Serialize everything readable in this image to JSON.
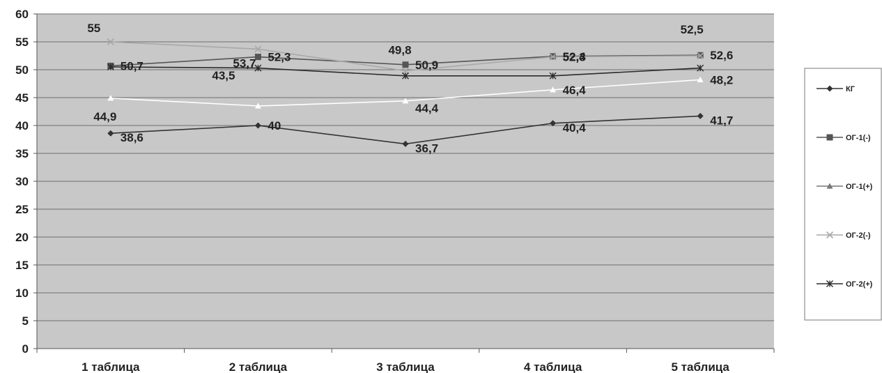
{
  "chart_data": {
    "type": "line",
    "categories": [
      "1 таблица",
      "2 таблица",
      "3 таблица",
      "4 таблица",
      "5 таблица"
    ],
    "ylim": [
      0,
      60
    ],
    "yticks": [
      0,
      5,
      10,
      15,
      20,
      25,
      30,
      35,
      40,
      45,
      50,
      55,
      60
    ],
    "grid": true,
    "legend_position": "right",
    "colors": {
      "plot_background": "#c8c8c8",
      "gridline": "#6e6e6e"
    },
    "series": [
      {
        "name": "КГ",
        "values": [
          38.6,
          40,
          36.7,
          40.4,
          41.7
        ],
        "labels": [
          "38,6",
          "40",
          "36,7",
          "40,4",
          "41,7"
        ],
        "color": "#333333",
        "marker": "diamond"
      },
      {
        "name": "ОГ-1(-)",
        "values": [
          50.7,
          52.3,
          50.9,
          52.4,
          52.6
        ],
        "labels": [
          "50,7",
          "52,3",
          "50,9",
          "52,4",
          "52,6"
        ],
        "color": "#555555",
        "marker": "square"
      },
      {
        "name": "ОГ-1(+)",
        "values": [
          44.9,
          43.5,
          44.4,
          46.4,
          48.2
        ],
        "labels": [
          "44,9",
          "43,5",
          "44,4",
          "46,4",
          "48,2"
        ],
        "color": "#ffffff",
        "marker": "triangle"
      },
      {
        "name": "ОГ-2(-)",
        "values": [
          55,
          53.7,
          49.8,
          52.3,
          52.5
        ],
        "labels": [
          "55",
          "53,7",
          "49,8",
          "52,3",
          "52,5"
        ],
        "color": "#a8a8a8",
        "marker": "x"
      },
      {
        "name": "ОГ-2(+)",
        "values": [
          50.5,
          50.3,
          48.9,
          48.9,
          50.3
        ],
        "labels": [],
        "color": "#2b2b2b",
        "marker": "star"
      }
    ]
  }
}
